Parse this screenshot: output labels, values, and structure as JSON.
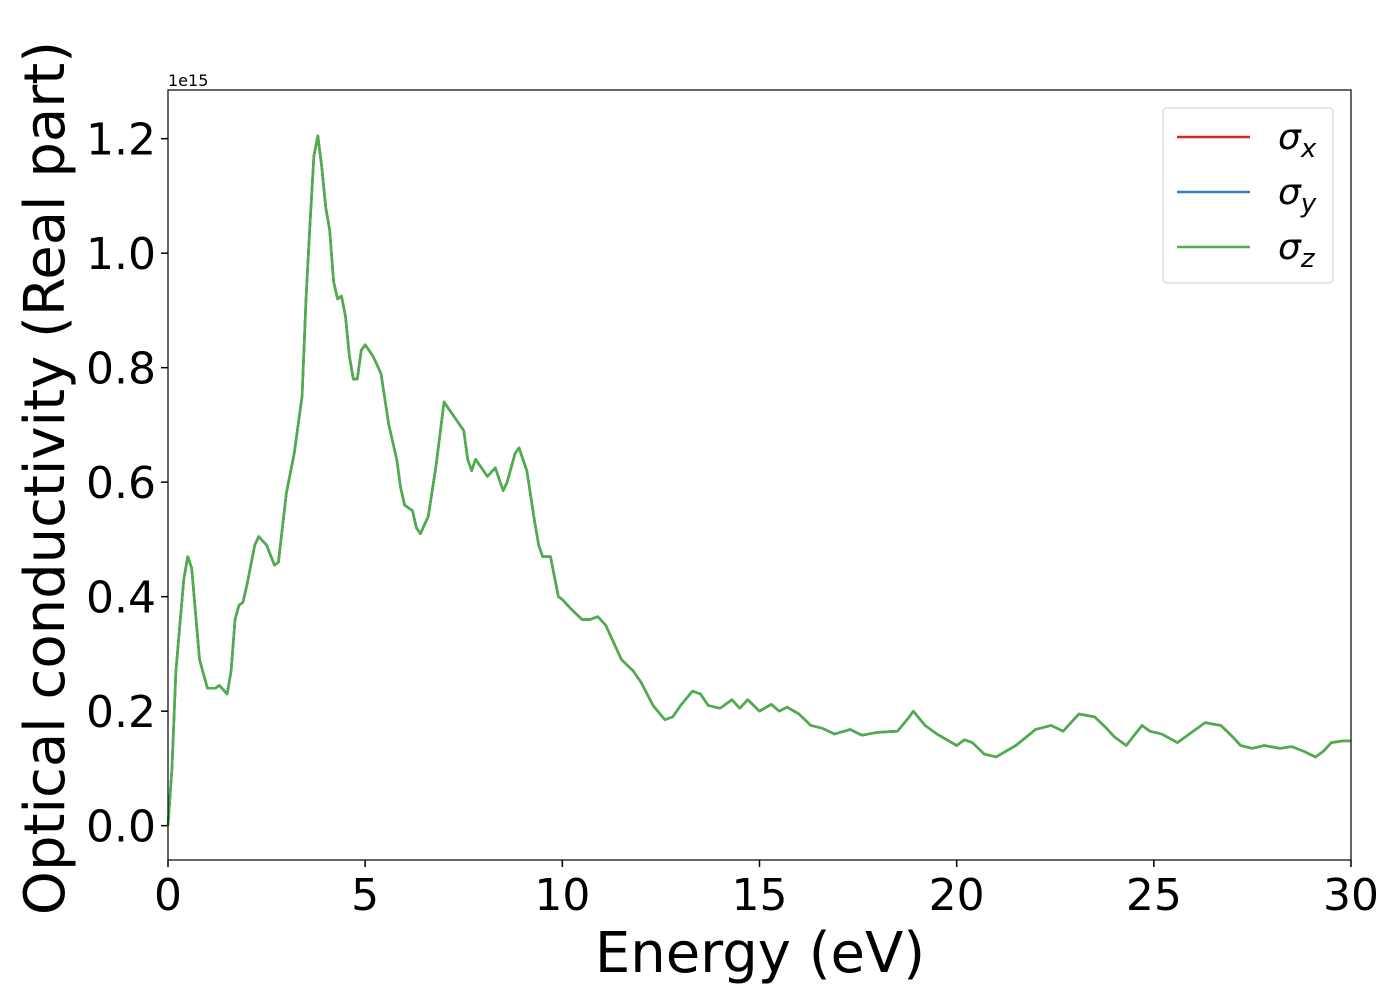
{
  "chart_data": {
    "type": "line",
    "xlabel": "Energy (eV)",
    "ylabel": "Optical conductivity (Real part)",
    "y_offset_label": "1e15",
    "x": [
      0,
      0.1,
      0.2,
      0.3,
      0.4,
      0.5,
      0.6,
      0.7,
      0.8,
      1.0,
      1.2,
      1.3,
      1.5,
      1.6,
      1.7,
      1.8,
      1.9,
      2.0,
      2.2,
      2.3,
      2.5,
      2.7,
      2.8,
      3.0,
      3.2,
      3.4,
      3.5,
      3.6,
      3.7,
      3.8,
      3.9,
      4.0,
      4.1,
      4.2,
      4.3,
      4.4,
      4.5,
      4.6,
      4.7,
      4.8,
      4.9,
      5.0,
      5.2,
      5.4,
      5.6,
      5.8,
      5.9,
      6.0,
      6.2,
      6.3,
      6.4,
      6.6,
      6.8,
      7.0,
      7.1,
      7.3,
      7.5,
      7.6,
      7.7,
      7.8,
      8.0,
      8.1,
      8.3,
      8.5,
      8.6,
      8.8,
      8.9,
      9.1,
      9.3,
      9.4,
      9.5,
      9.7,
      9.9,
      10.0,
      10.2,
      10.5,
      10.7,
      10.9,
      11.1,
      11.3,
      11.5,
      11.8,
      12.0,
      12.3,
      12.6,
      12.8,
      13.0,
      13.3,
      13.5,
      13.7,
      14.0,
      14.3,
      14.5,
      14.7,
      15.0,
      15.3,
      15.5,
      15.7,
      16.0,
      16.3,
      16.6,
      16.9,
      17.3,
      17.6,
      18.0,
      18.5,
      18.8,
      18.9,
      19.2,
      19.5,
      20.0,
      20.2,
      20.4,
      20.7,
      21.0,
      21.5,
      22.0,
      22.4,
      22.7,
      23.1,
      23.5,
      23.8,
      24.0,
      24.3,
      24.7,
      24.9,
      25.2,
      25.6,
      25.9,
      26.1,
      26.3,
      26.7,
      27.0,
      27.2,
      27.5,
      27.8,
      28.2,
      28.5,
      28.8,
      29.1,
      29.3,
      29.5,
      29.8,
      30.0
    ],
    "series": [
      {
        "name": "σx",
        "color": "#d62728",
        "values": [
          0.0,
          0.1,
          0.27,
          0.35,
          0.43,
          0.47,
          0.45,
          0.37,
          0.29,
          0.24,
          0.24,
          0.245,
          0.23,
          0.27,
          0.36,
          0.385,
          0.39,
          0.42,
          0.49,
          0.505,
          0.49,
          0.455,
          0.46,
          0.58,
          0.65,
          0.75,
          0.92,
          1.05,
          1.17,
          1.205,
          1.15,
          1.08,
          1.04,
          0.95,
          0.92,
          0.925,
          0.89,
          0.82,
          0.78,
          0.78,
          0.83,
          0.84,
          0.82,
          0.79,
          0.7,
          0.64,
          0.59,
          0.56,
          0.55,
          0.52,
          0.51,
          0.54,
          0.63,
          0.74,
          0.73,
          0.71,
          0.69,
          0.64,
          0.62,
          0.64,
          0.62,
          0.61,
          0.625,
          0.585,
          0.6,
          0.65,
          0.66,
          0.62,
          0.53,
          0.49,
          0.47,
          0.47,
          0.4,
          0.395,
          0.38,
          0.36,
          0.36,
          0.365,
          0.35,
          0.32,
          0.29,
          0.27,
          0.25,
          0.21,
          0.185,
          0.19,
          0.21,
          0.235,
          0.23,
          0.21,
          0.205,
          0.22,
          0.205,
          0.22,
          0.2,
          0.212,
          0.2,
          0.207,
          0.195,
          0.175,
          0.17,
          0.16,
          0.168,
          0.158,
          0.163,
          0.165,
          0.19,
          0.2,
          0.175,
          0.16,
          0.14,
          0.15,
          0.145,
          0.125,
          0.12,
          0.14,
          0.168,
          0.175,
          0.165,
          0.195,
          0.19,
          0.17,
          0.155,
          0.14,
          0.175,
          0.165,
          0.16,
          0.145,
          0.16,
          0.17,
          0.18,
          0.175,
          0.155,
          0.14,
          0.135,
          0.14,
          0.135,
          0.138,
          0.13,
          0.12,
          0.13,
          0.145,
          0.148,
          0.148
        ]
      },
      {
        "name": "σy",
        "color": "#3a7fb5",
        "values": [
          0.0,
          0.1,
          0.27,
          0.35,
          0.43,
          0.47,
          0.45,
          0.37,
          0.29,
          0.24,
          0.24,
          0.245,
          0.23,
          0.27,
          0.36,
          0.385,
          0.39,
          0.42,
          0.49,
          0.505,
          0.49,
          0.455,
          0.46,
          0.58,
          0.65,
          0.75,
          0.92,
          1.05,
          1.17,
          1.205,
          1.15,
          1.08,
          1.04,
          0.95,
          0.92,
          0.925,
          0.89,
          0.82,
          0.78,
          0.78,
          0.83,
          0.84,
          0.82,
          0.79,
          0.7,
          0.64,
          0.59,
          0.56,
          0.55,
          0.52,
          0.51,
          0.54,
          0.63,
          0.74,
          0.73,
          0.71,
          0.69,
          0.64,
          0.62,
          0.64,
          0.62,
          0.61,
          0.625,
          0.585,
          0.6,
          0.65,
          0.66,
          0.62,
          0.53,
          0.49,
          0.47,
          0.47,
          0.4,
          0.395,
          0.38,
          0.36,
          0.36,
          0.365,
          0.35,
          0.32,
          0.29,
          0.27,
          0.25,
          0.21,
          0.185,
          0.19,
          0.21,
          0.235,
          0.23,
          0.21,
          0.205,
          0.22,
          0.205,
          0.22,
          0.2,
          0.212,
          0.2,
          0.207,
          0.195,
          0.175,
          0.17,
          0.16,
          0.168,
          0.158,
          0.163,
          0.165,
          0.19,
          0.2,
          0.175,
          0.16,
          0.14,
          0.15,
          0.145,
          0.125,
          0.12,
          0.14,
          0.168,
          0.175,
          0.165,
          0.195,
          0.19,
          0.17,
          0.155,
          0.14,
          0.175,
          0.165,
          0.16,
          0.145,
          0.16,
          0.17,
          0.18,
          0.175,
          0.155,
          0.14,
          0.135,
          0.14,
          0.135,
          0.138,
          0.13,
          0.12,
          0.13,
          0.145,
          0.148,
          0.148
        ]
      },
      {
        "name": "σz",
        "color": "#4daf4a",
        "values": [
          0.0,
          0.1,
          0.27,
          0.35,
          0.43,
          0.47,
          0.45,
          0.37,
          0.29,
          0.24,
          0.24,
          0.245,
          0.23,
          0.27,
          0.36,
          0.385,
          0.39,
          0.42,
          0.49,
          0.505,
          0.49,
          0.455,
          0.46,
          0.58,
          0.65,
          0.75,
          0.92,
          1.05,
          1.17,
          1.205,
          1.15,
          1.08,
          1.04,
          0.95,
          0.92,
          0.925,
          0.89,
          0.82,
          0.78,
          0.78,
          0.83,
          0.84,
          0.82,
          0.79,
          0.7,
          0.64,
          0.59,
          0.56,
          0.55,
          0.52,
          0.51,
          0.54,
          0.63,
          0.74,
          0.73,
          0.71,
          0.69,
          0.64,
          0.62,
          0.64,
          0.62,
          0.61,
          0.625,
          0.585,
          0.6,
          0.65,
          0.66,
          0.62,
          0.53,
          0.49,
          0.47,
          0.47,
          0.4,
          0.395,
          0.38,
          0.36,
          0.36,
          0.365,
          0.35,
          0.32,
          0.29,
          0.27,
          0.25,
          0.21,
          0.185,
          0.19,
          0.21,
          0.235,
          0.23,
          0.21,
          0.205,
          0.22,
          0.205,
          0.22,
          0.2,
          0.212,
          0.2,
          0.207,
          0.195,
          0.175,
          0.17,
          0.16,
          0.168,
          0.158,
          0.163,
          0.165,
          0.19,
          0.2,
          0.175,
          0.16,
          0.14,
          0.15,
          0.145,
          0.125,
          0.12,
          0.14,
          0.168,
          0.175,
          0.165,
          0.195,
          0.19,
          0.17,
          0.155,
          0.14,
          0.175,
          0.165,
          0.16,
          0.145,
          0.16,
          0.17,
          0.18,
          0.175,
          0.155,
          0.14,
          0.135,
          0.14,
          0.135,
          0.138,
          0.13,
          0.12,
          0.13,
          0.145,
          0.148,
          0.148
        ]
      }
    ],
    "xlim": [
      0,
      30
    ],
    "xticks": [
      0,
      5,
      10,
      15,
      20,
      25,
      30
    ],
    "ylim": [
      -0.06,
      1.285
    ],
    "yticks": [
      {
        "value": 0,
        "label": "0.0"
      },
      {
        "value": 0.2,
        "label": "0.2"
      },
      {
        "value": 0.4,
        "label": "0.4"
      },
      {
        "value": 0.6,
        "label": "0.6"
      },
      {
        "value": 0.8,
        "label": "0.8"
      },
      {
        "value": 1.0,
        "label": "1.0"
      },
      {
        "value": 1.2,
        "label": "1.2"
      }
    ],
    "grid": false,
    "legend": "upper right"
  }
}
